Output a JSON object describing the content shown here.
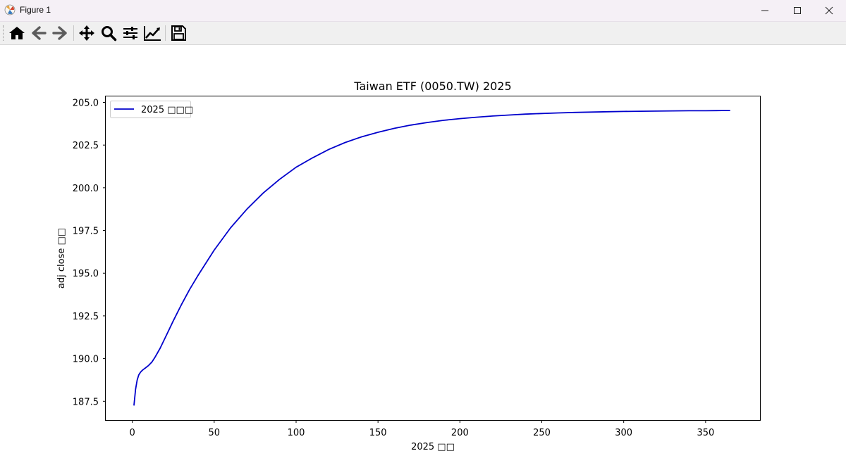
{
  "window": {
    "title": "Figure 1"
  },
  "toolbar": {
    "buttons": [
      "home-icon",
      "back-icon",
      "forward-icon",
      "pan-icon",
      "zoom-icon",
      "configure-subplots-icon",
      "edit-axis-icon",
      "save-icon"
    ]
  },
  "chart_data": {
    "type": "line",
    "title": "Taiwan ETF (0050.TW) 2025",
    "xlabel": "2025 □□",
    "ylabel": "adj close □□",
    "xlim": [
      -16.2,
      383.2
    ],
    "ylim": [
      186.4,
      205.35
    ],
    "xticks": [
      0,
      50,
      100,
      150,
      200,
      250,
      300,
      350
    ],
    "xtick_labels": [
      "0",
      "50",
      "100",
      "150",
      "200",
      "250",
      "300",
      "350"
    ],
    "yticks": [
      187.5,
      190.0,
      192.5,
      195.0,
      197.5,
      200.0,
      202.5,
      205.0
    ],
    "ytick_labels": [
      "187.5",
      "190.0",
      "192.5",
      "195.0",
      "197.5",
      "200.0",
      "202.5",
      "205.0"
    ],
    "legend": {
      "position": "top-left"
    },
    "grid": false,
    "series": [
      {
        "name": "2025 □□□",
        "color": "#0000cc",
        "x": [
          1,
          2,
          3,
          4,
          5,
          6,
          7,
          8,
          10,
          12,
          14,
          17,
          20,
          25,
          30,
          35,
          40,
          50,
          60,
          70,
          80,
          90,
          100,
          110,
          120,
          130,
          140,
          150,
          160,
          170,
          180,
          190,
          200,
          210,
          220,
          230,
          240,
          250,
          260,
          270,
          280,
          290,
          300,
          310,
          320,
          330,
          340,
          350,
          360,
          365
        ],
        "y": [
          187.25,
          188.2,
          188.75,
          189.05,
          189.2,
          189.3,
          189.38,
          189.45,
          189.6,
          189.8,
          190.1,
          190.6,
          191.2,
          192.2,
          193.15,
          194.05,
          194.85,
          196.35,
          197.65,
          198.75,
          199.7,
          200.5,
          201.2,
          201.75,
          202.25,
          202.65,
          202.98,
          203.25,
          203.48,
          203.67,
          203.82,
          203.95,
          204.05,
          204.13,
          204.2,
          204.26,
          204.31,
          204.35,
          204.38,
          204.41,
          204.43,
          204.45,
          204.47,
          204.48,
          204.49,
          204.5,
          204.51,
          204.51,
          204.52,
          204.52
        ]
      }
    ]
  }
}
